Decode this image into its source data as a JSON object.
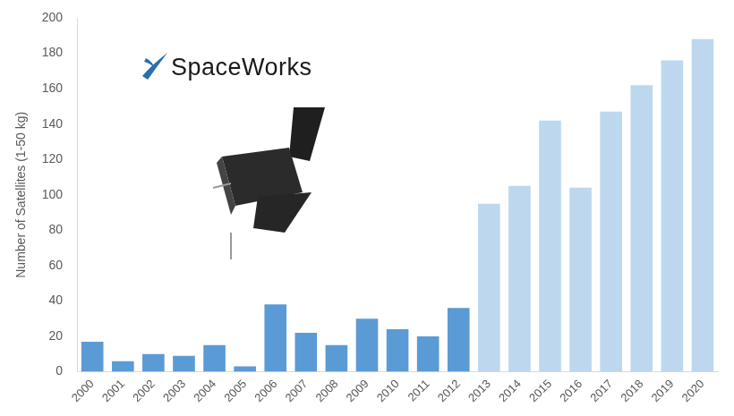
{
  "chart_data": {
    "type": "bar",
    "y_label": "Number of Satellites (1-50 kg)",
    "annotations": [
      "SpaceWorks"
    ],
    "categories": [
      "2000",
      "2001",
      "2002",
      "2003",
      "2004",
      "2005",
      "2006",
      "2007",
      "2008",
      "2009",
      "2010",
      "2011",
      "2012",
      "2013",
      "2014",
      "2015",
      "2016",
      "2017",
      "2018",
      "2019",
      "2020"
    ],
    "values": [
      17,
      6,
      10,
      9,
      15,
      3,
      38,
      22,
      15,
      30,
      24,
      20,
      36,
      95,
      105,
      142,
      104,
      147,
      162,
      176,
      188
    ],
    "colors": [
      "#5b9bd5",
      "#5b9bd5",
      "#5b9bd5",
      "#5b9bd5",
      "#5b9bd5",
      "#5b9bd5",
      "#5b9bd5",
      "#5b9bd5",
      "#5b9bd5",
      "#5b9bd5",
      "#5b9bd5",
      "#5b9bd5",
      "#5b9bd5",
      "#bdd7ee",
      "#bdd7ee",
      "#bdd7ee",
      "#bdd7ee",
      "#bdd7ee",
      "#bdd7ee",
      "#bdd7ee",
      "#bdd7ee"
    ],
    "ylim": [
      0,
      200
    ],
    "yticks": [
      0,
      20,
      40,
      60,
      80,
      100,
      120,
      140,
      160,
      180,
      200
    ],
    "grid": false,
    "data_labels": false
  }
}
